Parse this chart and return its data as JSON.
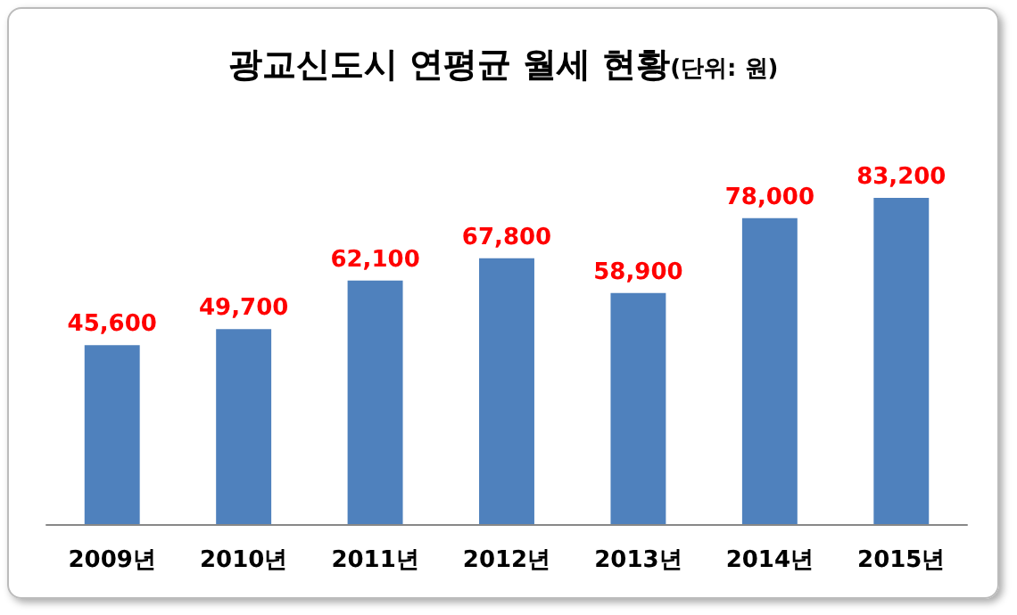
{
  "chart_data": {
    "type": "bar",
    "title": "광교신도시 연평균 월세 현황",
    "subtitle": "(단위: 원)",
    "categories": [
      "2009년",
      "2010년",
      "2011년",
      "2012년",
      "2013년",
      "2014년",
      "2015년"
    ],
    "values": [
      45600,
      49700,
      62100,
      67800,
      58900,
      78000,
      83200
    ],
    "value_labels": [
      "45,600",
      "49,700",
      "62,100",
      "67,800",
      "58,900",
      "78,000",
      "83,200"
    ],
    "color": "#4f81bd",
    "grid": false
  }
}
